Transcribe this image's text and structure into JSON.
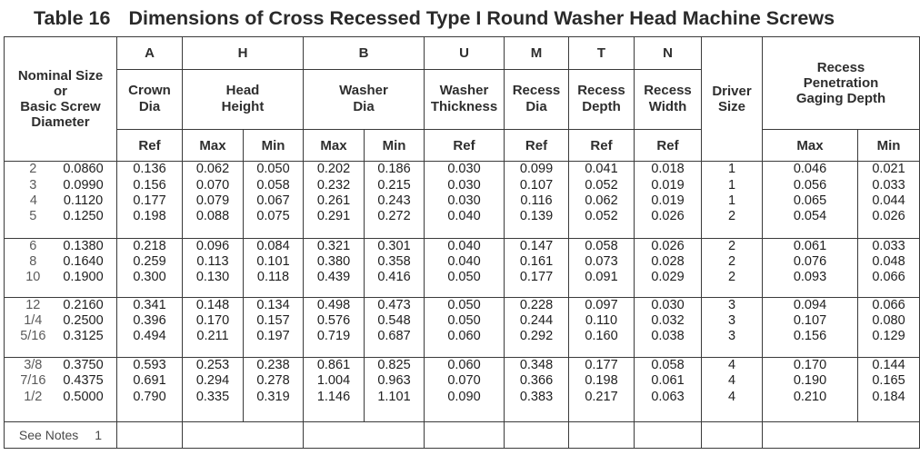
{
  "title": {
    "number": "Table 16",
    "text": "Dimensions of Cross Recessed Type I Round Washer Head Machine Screws"
  },
  "header": {
    "nominal_size": [
      "Nominal Size",
      "or",
      "Basic Screw",
      "Diameter"
    ],
    "letters": {
      "A": "A",
      "H": "H",
      "B": "B",
      "U": "U",
      "M": "M",
      "T": "T",
      "N": "N"
    },
    "crown_dia": [
      "Crown",
      "Dia"
    ],
    "head_height": [
      "Head",
      "Height"
    ],
    "washer_dia": [
      "Washer",
      "Dia"
    ],
    "washer_thickness": [
      "Washer",
      "Thickness"
    ],
    "recess_dia": [
      "Recess",
      "Dia"
    ],
    "recess_depth": [
      "Recess",
      "Depth"
    ],
    "recess_width": [
      "Recess",
      "Width"
    ],
    "driver_size": [
      "Driver",
      "Size"
    ],
    "recess_gaging": [
      "Recess",
      "Penetration",
      "Gaging Depth"
    ],
    "sub": {
      "ref": "Ref",
      "max": "Max",
      "min": "Min"
    }
  },
  "groups": [
    {
      "nominal": [
        "2",
        "3",
        "4",
        "5"
      ],
      "basic_dia": [
        "0.0860",
        "0.0990",
        "0.1120",
        "0.1250"
      ],
      "crown_dia": [
        "0.136",
        "0.156",
        "0.177",
        "0.198"
      ],
      "head_h_max": [
        "0.062",
        "0.070",
        "0.079",
        "0.088"
      ],
      "head_h_min": [
        "0.050",
        "0.058",
        "0.067",
        "0.075"
      ],
      "washer_dia_max": [
        "0.202",
        "0.232",
        "0.261",
        "0.291"
      ],
      "washer_dia_min": [
        "0.186",
        "0.215",
        "0.243",
        "0.272"
      ],
      "washer_thk": [
        "0.030",
        "0.030",
        "0.030",
        "0.040"
      ],
      "recess_dia": [
        "0.099",
        "0.107",
        "0.116",
        "0.139"
      ],
      "recess_depth": [
        "0.041",
        "0.052",
        "0.062",
        "0.052"
      ],
      "recess_width": [
        "0.018",
        "0.019",
        "0.019",
        "0.026"
      ],
      "driver": [
        "1",
        "1",
        "1",
        "2"
      ],
      "gage_max": [
        "0.046",
        "0.056",
        "0.065",
        "0.054"
      ],
      "gage_min": [
        "0.021",
        "0.033",
        "0.044",
        "0.026"
      ]
    },
    {
      "nominal": [
        "6",
        "8",
        "10"
      ],
      "basic_dia": [
        "0.1380",
        "0.1640",
        "0.1900"
      ],
      "crown_dia": [
        "0.218",
        "0.259",
        "0.300"
      ],
      "head_h_max": [
        "0.096",
        "0.113",
        "0.130"
      ],
      "head_h_min": [
        "0.084",
        "0.101",
        "0.118"
      ],
      "washer_dia_max": [
        "0.321",
        "0.380",
        "0.439"
      ],
      "washer_dia_min": [
        "0.301",
        "0.358",
        "0.416"
      ],
      "washer_thk": [
        "0.040",
        "0.040",
        "0.050"
      ],
      "recess_dia": [
        "0.147",
        "0.161",
        "0.177"
      ],
      "recess_depth": [
        "0.058",
        "0.073",
        "0.091"
      ],
      "recess_width": [
        "0.026",
        "0.028",
        "0.029"
      ],
      "driver": [
        "2",
        "2",
        "2"
      ],
      "gage_max": [
        "0.061",
        "0.076",
        "0.093"
      ],
      "gage_min": [
        "0.033",
        "0.048",
        "0.066"
      ]
    },
    {
      "nominal": [
        "12",
        "1/4",
        "5/16"
      ],
      "basic_dia": [
        "0.2160",
        "0.2500",
        "0.3125"
      ],
      "crown_dia": [
        "0.341",
        "0.396",
        "0.494"
      ],
      "head_h_max": [
        "0.148",
        "0.170",
        "0.211"
      ],
      "head_h_min": [
        "0.134",
        "0.157",
        "0.197"
      ],
      "washer_dia_max": [
        "0.498",
        "0.576",
        "0.719"
      ],
      "washer_dia_min": [
        "0.473",
        "0.548",
        "0.687"
      ],
      "washer_thk": [
        "0.050",
        "0.050",
        "0.060"
      ],
      "recess_dia": [
        "0.228",
        "0.244",
        "0.292"
      ],
      "recess_depth": [
        "0.097",
        "0.110",
        "0.160"
      ],
      "recess_width": [
        "0.030",
        "0.032",
        "0.038"
      ],
      "driver": [
        "3",
        "3",
        "3"
      ],
      "gage_max": [
        "0.094",
        "0.107",
        "0.156"
      ],
      "gage_min": [
        "0.066",
        "0.080",
        "0.129"
      ]
    },
    {
      "nominal": [
        "3/8",
        "7/16",
        "1/2"
      ],
      "basic_dia": [
        "0.3750",
        "0.4375",
        "0.5000"
      ],
      "crown_dia": [
        "0.593",
        "0.691",
        "0.790"
      ],
      "head_h_max": [
        "0.253",
        "0.294",
        "0.335"
      ],
      "head_h_min": [
        "0.238",
        "0.278",
        "0.319"
      ],
      "washer_dia_max": [
        "0.861",
        "1.004",
        "1.146"
      ],
      "washer_dia_min": [
        "0.825",
        "0.963",
        "1.101"
      ],
      "washer_thk": [
        "0.060",
        "0.070",
        "0.090"
      ],
      "recess_dia": [
        "0.348",
        "0.366",
        "0.383"
      ],
      "recess_depth": [
        "0.177",
        "0.198",
        "0.217"
      ],
      "recess_width": [
        "0.058",
        "0.061",
        "0.063"
      ],
      "driver": [
        "4",
        "4",
        "4"
      ],
      "gage_max": [
        "0.170",
        "0.190",
        "0.210"
      ],
      "gage_min": [
        "0.144",
        "0.165",
        "0.184"
      ]
    }
  ],
  "footer": {
    "notes_label": "See Notes",
    "notes_ref": "1"
  }
}
